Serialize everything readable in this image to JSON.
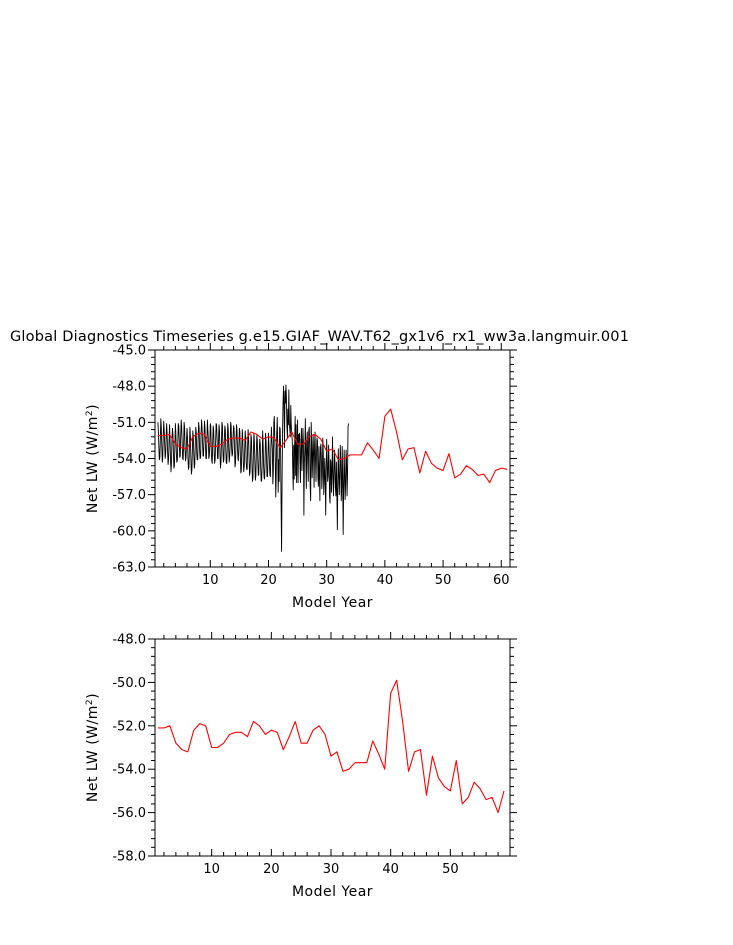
{
  "title": "Global Diagnostics Timeseries g.e15.GIAF_WAV.T62_gx1v6_rx1_ww3a.langmuir.001",
  "chart_data": [
    {
      "type": "line",
      "title": "Global Diagnostics Timeseries g.e15.GIAF_WAV.T62_gx1v6_rx1_ww3a.langmuir.001",
      "xlabel": "Model Year",
      "ylabel_main": "Net LW (W/m",
      "ylabel_sup": "2",
      "ylabel_close": ")",
      "xlim": [
        0.5,
        61.5
      ],
      "ylim": [
        -63.0,
        -45.0
      ],
      "xticks": [
        10,
        20,
        30,
        40,
        50,
        60
      ],
      "xtick_labels": [
        "10",
        "20",
        "30",
        "40",
        "50",
        "60"
      ],
      "yticks": [
        -63.0,
        -60.0,
        -57.0,
        -54.0,
        -51.0,
        -48.0,
        -45.0
      ],
      "ytick_labels": [
        "-63.0",
        "-60.0",
        "-57.0",
        "-54.0",
        "-51.0",
        "-48.0",
        "-45.0"
      ],
      "grid": false,
      "series": [
        {
          "color": "#000000",
          "resolution": "monthly",
          "values": [
            -51.0,
            -51.8,
            -53.1,
            -54.1,
            -53.9,
            -52.4,
            -50.7,
            -51.4,
            -53.0,
            -54.3,
            -53.9,
            -52.1,
            -50.9,
            -51.7,
            -52.9,
            -54.0,
            -53.6,
            -52.2,
            -51.1,
            -52.0,
            -53.5,
            -54.5,
            -54.0,
            -52.6,
            -51.2,
            -52.5,
            -54.1,
            -55.1,
            -54.3,
            -52.5,
            -51.5,
            -52.0,
            -53.6,
            -54.8,
            -54.6,
            -52.9,
            -51.1,
            -51.9,
            -53.5,
            -54.3,
            -54.2,
            -52.7,
            -51.1,
            -51.3,
            -52.5,
            -53.9,
            -53.8,
            -52.1,
            -50.8,
            -51.4,
            -52.7,
            -54.0,
            -54.1,
            -52.9,
            -51.0,
            -51.4,
            -53.3,
            -54.2,
            -53.9,
            -52.4,
            -51.5,
            -52.3,
            -54.0,
            -54.9,
            -54.7,
            -53.0,
            -51.4,
            -52.2,
            -54.0,
            -55.3,
            -55.0,
            -53.5,
            -51.7,
            -52.2,
            -53.6,
            -54.8,
            -54.5,
            -52.9,
            -51.4,
            -51.8,
            -53.5,
            -54.1,
            -54.1,
            -52.2,
            -51.0,
            -51.5,
            -53.3,
            -54.0,
            -53.9,
            -51.9,
            -50.8,
            -51.4,
            -52.6,
            -53.8,
            -53.8,
            -52.4,
            -50.9,
            -51.4,
            -52.9,
            -54.0,
            -54.0,
            -52.5,
            -50.8,
            -51.6,
            -52.5,
            -54.0,
            -53.8,
            -52.8,
            -51.1,
            -51.3,
            -53.3,
            -54.2,
            -54.4,
            -52.6,
            -51.3,
            -51.7,
            -53.4,
            -54.4,
            -54.1,
            -52.6,
            -51.1,
            -51.2,
            -52.4,
            -54.0,
            -54.0,
            -52.5,
            -51.2,
            -51.7,
            -53.6,
            -54.8,
            -54.3,
            -52.8,
            -51.0,
            -51.3,
            -53.2,
            -54.3,
            -54.1,
            -52.4,
            -51.3,
            -51.6,
            -53.4,
            -54.4,
            -54.4,
            -53.1,
            -51.1,
            -51.6,
            -53.2,
            -54.3,
            -53.8,
            -52.8,
            -51.0,
            -51.3,
            -53.2,
            -53.8,
            -53.6,
            -52.2,
            -51.3,
            -51.5,
            -53.2,
            -54.7,
            -54.4,
            -52.7,
            -51.2,
            -51.6,
            -53.1,
            -54.0,
            -54.2,
            -52.9,
            -51.5,
            -51.8,
            -53.8,
            -55.2,
            -55.0,
            -53.1,
            -51.6,
            -52.4,
            -54.3,
            -55.1,
            -54.6,
            -53.2,
            -51.7,
            -52.3,
            -54.3,
            -54.9,
            -54.9,
            -53.0,
            -51.6,
            -52.3,
            -54.0,
            -55.4,
            -55.1,
            -53.8,
            -52.0,
            -52.5,
            -54.6,
            -55.9,
            -55.6,
            -53.4,
            -51.9,
            -52.6,
            -54.4,
            -55.8,
            -55.4,
            -53.4,
            -52.1,
            -52.5,
            -54.2,
            -55.4,
            -55.3,
            -53.4,
            -52.4,
            -52.8,
            -54.9,
            -55.9,
            -55.8,
            -54.2,
            -51.7,
            -52.9,
            -54.7,
            -55.6,
            -55.7,
            -54.1,
            -51.9,
            -52.6,
            -54.1,
            -55.5,
            -55.5,
            -53.8,
            -51.9,
            -52.9,
            -54.5,
            -55.4,
            -55.5,
            -53.1,
            -51.4,
            -52.4,
            -53.2,
            -56.1,
            -55.0,
            -51.0,
            -50.5,
            -52.3,
            -54.1,
            -57.2,
            -55.2,
            -51.9,
            -50.6,
            -52.7,
            -56.8,
            -54.1,
            -55.9,
            -51.4,
            -51.5,
            -53.3,
            -57.8,
            -61.7,
            -56.0,
            -51.8,
            -49.4,
            -48.0,
            -49.6,
            -53.1,
            -48.4,
            -49.4,
            -47.9,
            -49.0,
            -51.3,
            -52.3,
            -49.9,
            -51.2,
            -48.3,
            -51.1,
            -51.6,
            -52.2,
            -49.6,
            -51.3,
            -52.1,
            -52.4,
            -54.8,
            -56.6,
            -52.9,
            -55.7,
            -52.8,
            -50.5,
            -55.4,
            -51.2,
            -56.0,
            -53.3,
            -50.8,
            -56.0,
            -52.0,
            -52.6,
            -51.9,
            -54.5,
            -56.0,
            -52.5,
            -51.5,
            -55.0,
            -53.0,
            -51.5,
            -52.7,
            -58.7,
            -54.3,
            -53.3,
            -50.7,
            -54.1,
            -56.5,
            -52.5,
            -51.8,
            -54.4,
            -55.9,
            -51.7,
            -51.4,
            -53.1,
            -56.4,
            -57.5,
            -51.0,
            -52.4,
            -55.6,
            -54.1,
            -52.0,
            -53.7,
            -56.4,
            -52.9,
            -51.8,
            -54.2,
            -55.9,
            -53.6,
            -52.3,
            -52.5,
            -55.6,
            -56.3,
            -53.0,
            -55.3,
            -57.5,
            -53.2,
            -52.8,
            -54.0,
            -56.5,
            -55.5,
            -52.3,
            -53.6,
            -57.0,
            -55.9,
            -54.0,
            -55.5,
            -58.7,
            -55.0,
            -52.4,
            -54.1,
            -55.9,
            -55.5,
            -52.9,
            -54.4,
            -57.2,
            -57.7,
            -54.1,
            -54.3,
            -56.8,
            -55.2,
            -52.2,
            -55.2,
            -57.1,
            -55.7,
            -53.3,
            -54.2,
            -56.4,
            -57.1,
            -54.3,
            -56.8,
            -59.9,
            -55.9,
            -53.2,
            -55.4,
            -57.0,
            -55.3,
            -52.9,
            -54.1,
            -57.5,
            -56.5,
            -53.0,
            -55.6,
            -60.3,
            -56.5,
            -53.3,
            -55.2,
            -57.4,
            -56.1,
            -53.3,
            -54.3,
            -57.1,
            -55.3,
            -51.4,
            -51.1
          ]
        },
        {
          "color": "#ff0000",
          "resolution": "annual",
          "values": [
            -52.1,
            -52.1,
            -52.0,
            -52.8,
            -53.1,
            -53.2,
            -52.2,
            -51.9,
            -52.0,
            -53.0,
            -53.0,
            -52.8,
            -52.4,
            -52.3,
            -52.3,
            -52.5,
            -51.8,
            -52.0,
            -52.4,
            -52.2,
            -52.3,
            -53.1,
            -52.5,
            -51.8,
            -52.8,
            -52.8,
            -52.2,
            -52.0,
            -52.4,
            -53.4,
            -53.2,
            -54.1,
            -54.0,
            -53.7,
            -53.7,
            -53.7,
            -52.7,
            -53.3,
            -54.0,
            -50.5,
            -49.9,
            -51.8,
            -54.1,
            -53.2,
            -53.1,
            -55.2,
            -53.4,
            -54.4,
            -54.8,
            -55.0,
            -53.6,
            -55.6,
            -55.3,
            -54.6,
            -54.9,
            -55.4,
            -55.3,
            -56.0,
            -55.0,
            -54.8,
            -54.9
          ]
        }
      ]
    },
    {
      "type": "line",
      "xlabel": "Model Year",
      "ylabel_main": "Net LW (W/m",
      "ylabel_sup": "2",
      "ylabel_close": ")",
      "xlim": [
        0.5,
        60.0
      ],
      "ylim": [
        -58.0,
        -48.0
      ],
      "xticks": [
        10,
        20,
        30,
        40,
        50
      ],
      "xtick_labels": [
        "10",
        "20",
        "30",
        "40",
        "50"
      ],
      "yticks": [
        -58.0,
        -56.0,
        -54.0,
        -52.0,
        -50.0,
        -48.0
      ],
      "ytick_labels": [
        "-58.0",
        "-56.0",
        "-54.0",
        "-52.0",
        "-50.0",
        "-48.0"
      ],
      "grid": false,
      "series": [
        {
          "color": "#ff0000",
          "resolution": "annual",
          "values": [
            -52.1,
            -52.1,
            -52.0,
            -52.8,
            -53.1,
            -53.2,
            -52.2,
            -51.9,
            -52.0,
            -53.0,
            -53.0,
            -52.8,
            -52.4,
            -52.3,
            -52.3,
            -52.5,
            -51.8,
            -52.0,
            -52.4,
            -52.2,
            -52.3,
            -53.1,
            -52.5,
            -51.8,
            -52.8,
            -52.8,
            -52.2,
            -52.0,
            -52.4,
            -53.4,
            -53.2,
            -54.1,
            -54.0,
            -53.7,
            -53.7,
            -53.7,
            -52.7,
            -53.3,
            -54.0,
            -50.5,
            -49.9,
            -51.8,
            -54.1,
            -53.2,
            -53.1,
            -55.2,
            -53.4,
            -54.4,
            -54.8,
            -55.0,
            -53.6,
            -55.6,
            -55.3,
            -54.6,
            -54.9,
            -55.4,
            -55.3,
            -56.0,
            -55.0
          ]
        }
      ]
    }
  ]
}
